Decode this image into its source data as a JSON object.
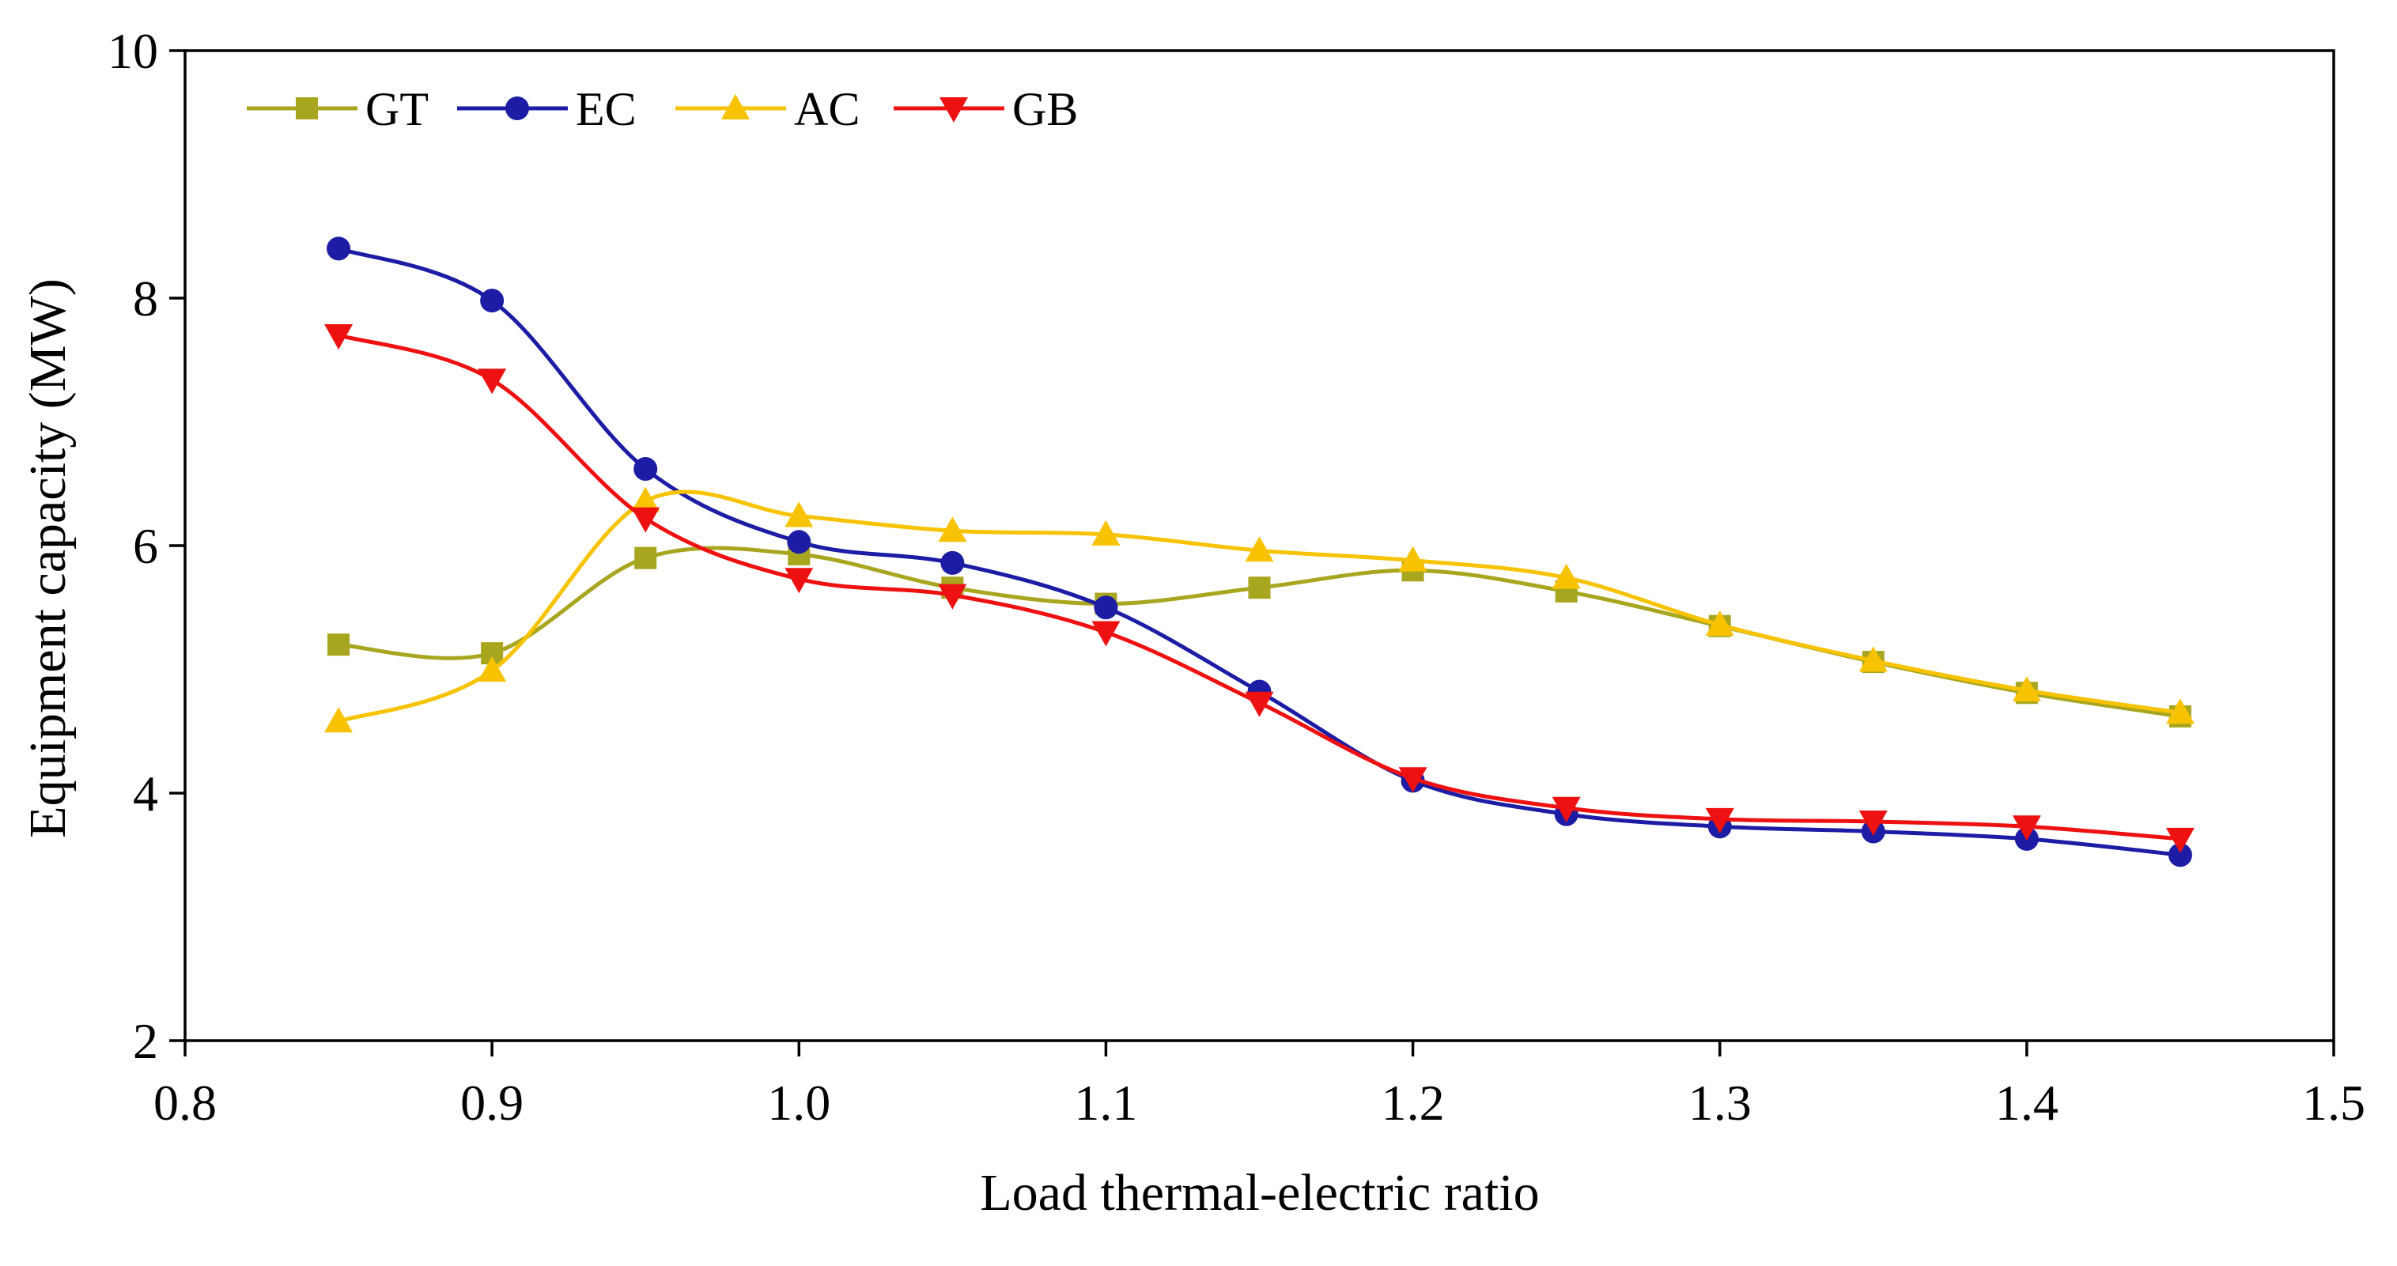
{
  "chart_data": {
    "type": "line",
    "title": "",
    "xlabel": "Load thermal-electric ratio",
    "ylabel": "Equipment capacity (MW)",
    "xlim": [
      0.8,
      1.5
    ],
    "ylim": [
      2,
      10
    ],
    "xticks": [
      0.8,
      0.9,
      1.0,
      1.1,
      1.2,
      1.3,
      1.4,
      1.5
    ],
    "xtick_labels": [
      "0.8",
      "0.9",
      "1.0",
      "1.1",
      "1.2",
      "1.3",
      "1.4",
      "1.5"
    ],
    "yticks": [
      2,
      4,
      6,
      8,
      10
    ],
    "ytick_labels": [
      "2",
      "4",
      "6",
      "8",
      "10"
    ],
    "grid": false,
    "legend_position": "top-left",
    "x": [
      0.85,
      0.9,
      0.95,
      1.0,
      1.05,
      1.1,
      1.15,
      1.2,
      1.25,
      1.3,
      1.35,
      1.4,
      1.45
    ],
    "series": [
      {
        "name": "GT",
        "color": "#a8a61e",
        "marker": "square",
        "values": [
          5.2,
          5.13,
          5.9,
          5.93,
          5.66,
          5.53,
          5.66,
          5.8,
          5.63,
          5.35,
          5.06,
          4.81,
          4.62
        ]
      },
      {
        "name": "EC",
        "color": "#1c1ca4",
        "marker": "circle",
        "values": [
          8.4,
          7.98,
          6.62,
          6.03,
          5.86,
          5.5,
          4.82,
          4.1,
          3.83,
          3.73,
          3.69,
          3.63,
          3.5
        ]
      },
      {
        "name": "AC",
        "color": "#f7c300",
        "marker": "triangle-up",
        "values": [
          4.58,
          4.99,
          6.36,
          6.24,
          6.12,
          6.09,
          5.96,
          5.88,
          5.74,
          5.36,
          5.07,
          4.83,
          4.65
        ]
      },
      {
        "name": "GB",
        "color": "#ee1111",
        "marker": "triangle-down",
        "values": [
          7.7,
          7.34,
          6.22,
          5.73,
          5.6,
          5.3,
          4.73,
          4.12,
          3.88,
          3.79,
          3.77,
          3.73,
          3.63
        ]
      }
    ]
  }
}
